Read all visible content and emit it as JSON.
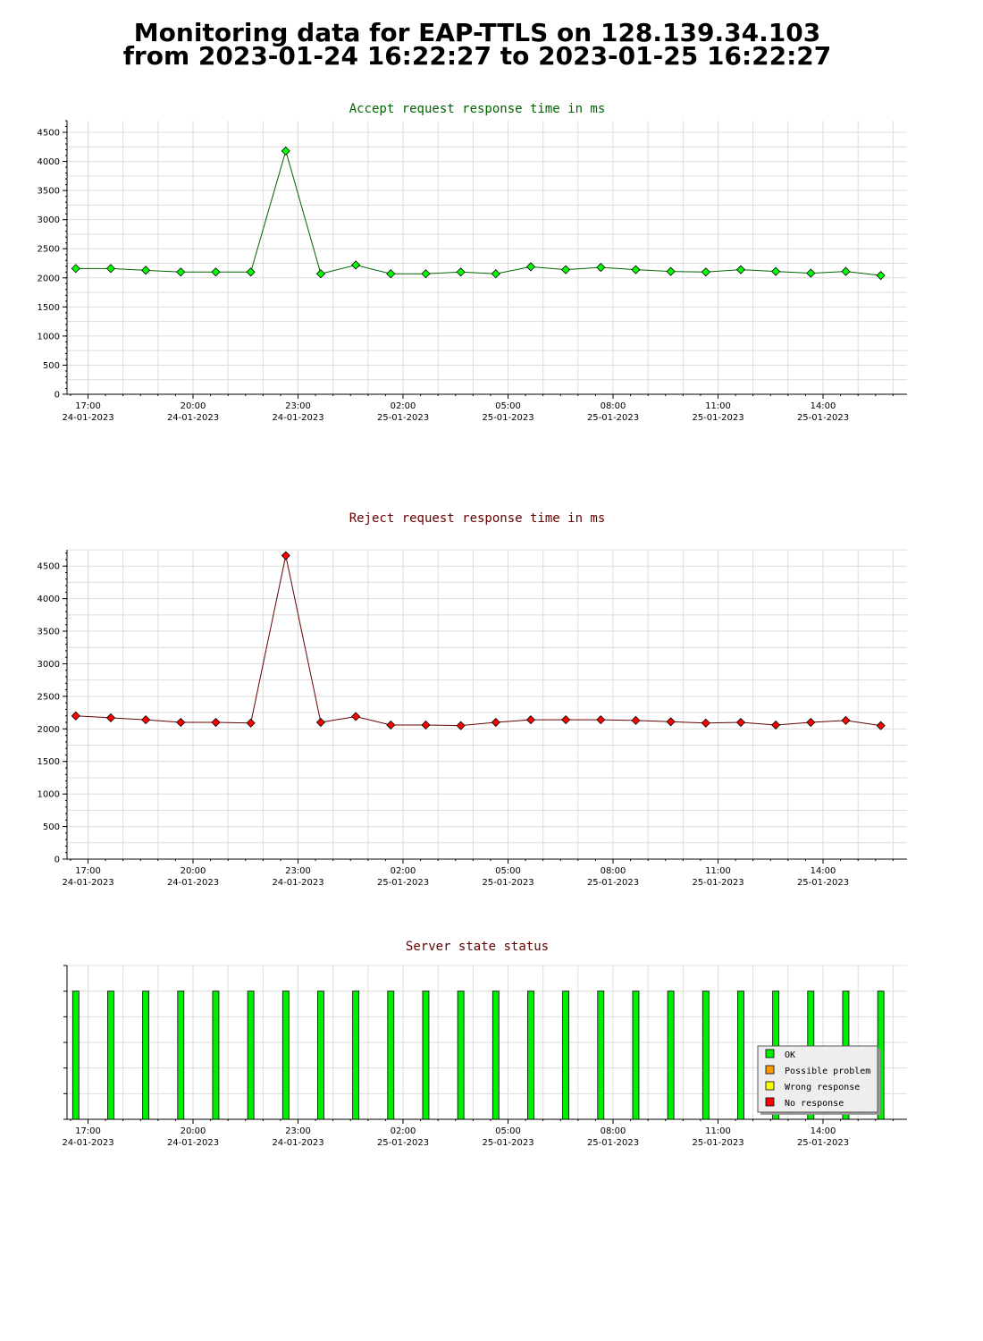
{
  "page": {
    "title_line1": "Monitoring data for EAP-TTLS on 128.139.34.103",
    "title_line2": "from 2023-01-24 16:22:27 to 2023-01-25 16:22:27"
  },
  "time_axis": {
    "ticks": [
      {
        "t": 0.6,
        "time": "17:00",
        "date": "24-01-2023"
      },
      {
        "t": 3.6,
        "time": "20:00",
        "date": "24-01-2023"
      },
      {
        "t": 6.6,
        "time": "23:00",
        "date": "24-01-2023"
      },
      {
        "t": 9.6,
        "time": "02:00",
        "date": "25-01-2023"
      },
      {
        "t": 12.6,
        "time": "05:00",
        "date": "25-01-2023"
      },
      {
        "t": 15.6,
        "time": "08:00",
        "date": "25-01-2023"
      },
      {
        "t": 18.6,
        "time": "11:00",
        "date": "25-01-2023"
      },
      {
        "t": 21.6,
        "time": "14:00",
        "date": "25-01-2023"
      }
    ],
    "range_hours": [
      0,
      24
    ]
  },
  "chart_data": [
    {
      "type": "line",
      "title": "Accept request response time in ms",
      "title_color": "#006400",
      "marker_color": "#00ff00",
      "line_color": "#006400",
      "ylim": [
        0,
        4700
      ],
      "yticks": [
        0,
        500,
        1000,
        1500,
        2000,
        2500,
        3000,
        3500,
        4000,
        4500
      ],
      "x_hours": [
        0.25,
        1.25,
        2.25,
        3.25,
        4.25,
        5.25,
        6.25,
        7.25,
        8.25,
        9.25,
        10.25,
        11.25,
        12.25,
        13.25,
        14.25,
        15.25,
        16.25,
        17.25,
        18.25,
        19.25,
        20.25,
        21.25,
        22.25,
        23.25
      ],
      "values": [
        2160,
        2160,
        2130,
        2100,
        2100,
        2100,
        4180,
        2070,
        2220,
        2070,
        2070,
        2100,
        2070,
        2190,
        2140,
        2180,
        2140,
        2110,
        2100,
        2140,
        2110,
        2080,
        2110,
        2040
      ]
    },
    {
      "type": "line",
      "title": "Reject request response time in ms",
      "title_color": "#660000",
      "marker_color": "#ff0000",
      "line_color": "#660000",
      "ylim": [
        0,
        4750
      ],
      "yticks": [
        0,
        500,
        1000,
        1500,
        2000,
        2500,
        3000,
        3500,
        4000,
        4500
      ],
      "x_hours": [
        0.25,
        1.25,
        2.25,
        3.25,
        4.25,
        5.25,
        6.25,
        7.25,
        8.25,
        9.25,
        10.25,
        11.25,
        12.25,
        13.25,
        14.25,
        15.25,
        16.25,
        17.25,
        18.25,
        19.25,
        20.25,
        21.25,
        22.25,
        23.25
      ],
      "values": [
        2200,
        2170,
        2140,
        2100,
        2100,
        2090,
        4660,
        2100,
        2190,
        2060,
        2060,
        2050,
        2100,
        2140,
        2140,
        2140,
        2130,
        2110,
        2090,
        2100,
        2060,
        2100,
        2130,
        2050
      ]
    },
    {
      "type": "bar",
      "title": "Server state status",
      "title_color": "#660000",
      "x_hours": [
        0.25,
        1.25,
        2.25,
        3.25,
        4.25,
        5.25,
        6.25,
        7.25,
        8.25,
        9.25,
        10.25,
        11.25,
        12.25,
        13.25,
        14.25,
        15.25,
        16.25,
        17.25,
        18.25,
        19.25,
        20.25,
        21.25,
        22.25,
        23.25
      ],
      "states": [
        "OK",
        "OK",
        "OK",
        "OK",
        "OK",
        "OK",
        "OK",
        "OK",
        "OK",
        "OK",
        "OK",
        "OK",
        "OK",
        "OK",
        "OK",
        "OK",
        "OK",
        "OK",
        "OK",
        "OK",
        "OK",
        "OK",
        "OK",
        "OK"
      ],
      "legend": [
        {
          "label": "OK",
          "color": "#00ee00"
        },
        {
          "label": "Possible problem",
          "color": "#ff9900"
        },
        {
          "label": "Wrong response",
          "color": "#ffff00"
        },
        {
          "label": "No response",
          "color": "#ff0000"
        }
      ],
      "legend_position": "bottom-right"
    }
  ]
}
